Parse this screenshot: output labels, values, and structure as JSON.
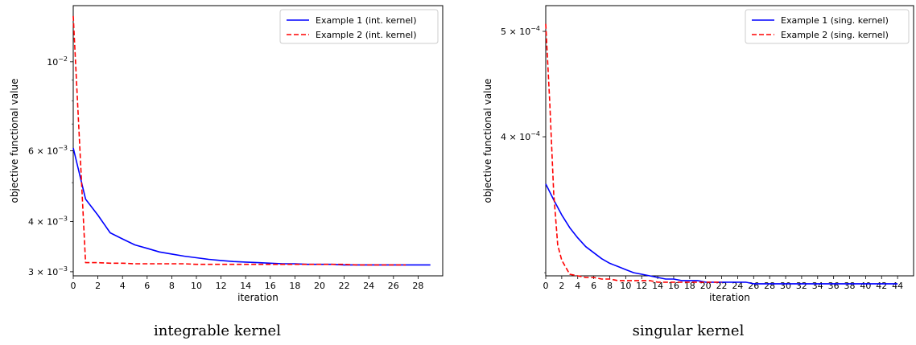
{
  "chart_data": [
    {
      "type": "line",
      "caption": "integrable kernel",
      "xlabel": "iteration",
      "ylabel": "objective functional value",
      "yscale": "log",
      "xlim": [
        0,
        30
      ],
      "ylim": [
        0.00293,
        0.0138
      ],
      "xticks": [
        0,
        2,
        4,
        6,
        8,
        10,
        12,
        14,
        16,
        18,
        20,
        22,
        24,
        26,
        28
      ],
      "yticks": [
        {
          "value": 0.003,
          "base": "3 × 10",
          "exp": "−3"
        },
        {
          "value": 0.004,
          "base": "4 × 10",
          "exp": "−3"
        },
        {
          "value": 0.006,
          "base": "6 × 10",
          "exp": "−3"
        },
        {
          "value": 0.01,
          "base": "10",
          "exp": "−2"
        }
      ],
      "legend_position": "top-right",
      "series": [
        {
          "name": "Example 1 (int. kernel)",
          "color": "#0000ff",
          "dash": "solid",
          "x": [
            0,
            1,
            2,
            3,
            4,
            5,
            6,
            7,
            8,
            9,
            10,
            11,
            12,
            13,
            14,
            15,
            16,
            17,
            18,
            19,
            20,
            21,
            22,
            23,
            24,
            25,
            26,
            27,
            28,
            29
          ],
          "y": [
            0.0061,
            0.00455,
            0.00415,
            0.00375,
            0.00362,
            0.0035,
            0.00343,
            0.00336,
            0.00332,
            0.00328,
            0.00325,
            0.00322,
            0.0032,
            0.00318,
            0.00317,
            0.00316,
            0.00315,
            0.00314,
            0.00314,
            0.00313,
            0.00313,
            0.00313,
            0.00312,
            0.00312,
            0.00312,
            0.00312,
            0.00312,
            0.00312,
            0.00312,
            0.00312
          ]
        },
        {
          "name": "Example 2 (int. kernel)",
          "color": "#ff0000",
          "dash": "dashed",
          "x": [
            0,
            1,
            2,
            3,
            4,
            5,
            6,
            7,
            8,
            9,
            10,
            11,
            12,
            13,
            14,
            15,
            16,
            17,
            18,
            19,
            20,
            21,
            22,
            23,
            24,
            25,
            26,
            27
          ],
          "y": [
            0.013,
            0.00316,
            0.00316,
            0.00315,
            0.00315,
            0.00314,
            0.00314,
            0.00314,
            0.00314,
            0.00314,
            0.00313,
            0.00313,
            0.00313,
            0.00313,
            0.00313,
            0.00313,
            0.00313,
            0.00313,
            0.00313,
            0.00313,
            0.00313,
            0.00313,
            0.00313,
            0.00312,
            0.00312,
            0.00312,
            0.00312,
            0.00312
          ]
        }
      ]
    },
    {
      "type": "line",
      "caption": "singular kernel",
      "xlabel": "iteration",
      "ylabel": "objective functional value",
      "yscale": "log",
      "xlim": [
        0,
        46
      ],
      "ylim": [
        0.000298,
        0.000528
      ],
      "xticks": [
        0,
        2,
        4,
        6,
        8,
        10,
        12,
        14,
        16,
        18,
        20,
        22,
        24,
        26,
        28,
        30,
        32,
        34,
        36,
        38,
        40,
        42,
        44
      ],
      "yticks": [
        {
          "value": 0.0004,
          "base": "4 × 10",
          "exp": "−4"
        },
        {
          "value": 0.0005,
          "base": "5 × 10",
          "exp": "−4"
        }
      ],
      "legend_position": "top-right",
      "series": [
        {
          "name": "Example 1 (sing. kernel)",
          "color": "#0000ff",
          "dash": "solid",
          "x": [
            0,
            1,
            2,
            3,
            4,
            5,
            6,
            7,
            8,
            9,
            10,
            11,
            12,
            13,
            14,
            15,
            16,
            17,
            18,
            19,
            20,
            21,
            22,
            23,
            24,
            25,
            26,
            27,
            28,
            29,
            30,
            31,
            32,
            33,
            34,
            35,
            36,
            37,
            38,
            39,
            40,
            41,
            42,
            43,
            44
          ],
          "y": [
            0.000362,
            0.00035,
            0.000339,
            0.00033,
            0.000323,
            0.000317,
            0.000313,
            0.000309,
            0.000306,
            0.000304,
            0.000302,
            0.0003,
            0.000299,
            0.000298,
            0.000297,
            0.000296,
            0.000296,
            0.000295,
            0.000295,
            0.000295,
            0.000294,
            0.000294,
            0.000294,
            0.000294,
            0.000294,
            0.000294,
            0.000293,
            0.000293,
            0.000293,
            0.000293,
            0.000293,
            0.000293,
            0.000293,
            0.000293,
            0.000293,
            0.000293,
            0.000293,
            0.000293,
            0.000293,
            0.000293,
            0.000293,
            0.000293,
            0.000293,
            0.000293,
            0.000293
          ]
        },
        {
          "name": "Example 2 (sing. kernel)",
          "color": "#ff0000",
          "dash": "dashed",
          "x": [
            0,
            0.5,
            1,
            1.5,
            2,
            3,
            4,
            5,
            6,
            7,
            8,
            9,
            10,
            11,
            12,
            13,
            14,
            15,
            16,
            17,
            18,
            19,
            20,
            21,
            22
          ],
          "y": [
            0.000508,
            0.00043,
            0.000355,
            0.000318,
            0.000308,
            0.000299,
            0.000298,
            0.000297,
            0.000297,
            0.000296,
            0.000296,
            0.000295,
            0.000295,
            0.000295,
            0.000295,
            0.000295,
            0.000294,
            0.000294,
            0.000294,
            0.000294,
            0.000294,
            0.000294,
            0.000294,
            0.000294,
            0.000294
          ]
        }
      ]
    }
  ]
}
